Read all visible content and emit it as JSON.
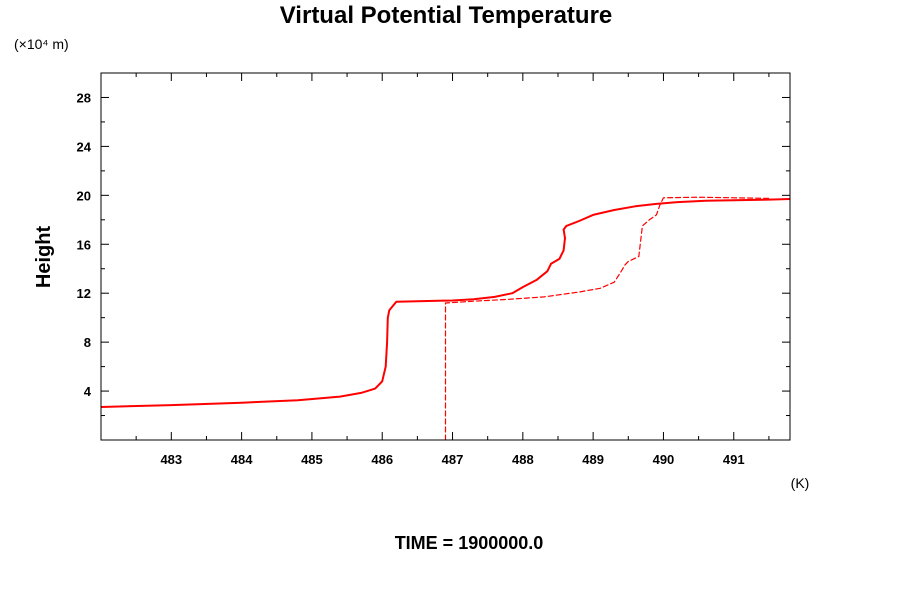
{
  "chart_data": {
    "type": "line",
    "title": "Virtual Potential Temperature",
    "ylabel": "Height",
    "yunit": "(×10⁴ m)",
    "xunit": "(K)",
    "footer": "TIME = 1900000.0",
    "xlim": [
      482.0,
      491.8
    ],
    "ylim": [
      0,
      30
    ],
    "xticks": [
      483,
      484,
      485,
      486,
      487,
      488,
      489,
      490,
      491
    ],
    "yticks": [
      4,
      8,
      12,
      16,
      20,
      24,
      28
    ],
    "xminor_step": 0.5,
    "yminor_step": 2,
    "grid": false,
    "color": "#ff0000",
    "series": [
      {
        "style": "solid",
        "x": [
          482.0,
          483.0,
          484.0,
          484.8,
          485.4,
          485.7,
          485.9,
          486.0,
          486.05,
          486.07,
          486.08,
          486.1,
          486.2,
          486.5,
          486.8,
          487.0,
          487.3,
          487.6,
          487.85,
          488.0,
          488.2,
          488.35,
          488.4,
          488.52,
          488.58,
          488.6,
          488.58,
          488.62,
          488.8,
          489.0,
          489.3,
          489.6,
          489.9,
          490.2,
          490.6,
          491.0,
          491.5,
          491.8
        ],
        "y": [
          2.7,
          2.85,
          3.05,
          3.25,
          3.55,
          3.85,
          4.2,
          4.8,
          6.0,
          8.0,
          10.0,
          10.6,
          11.3,
          11.35,
          11.38,
          11.4,
          11.5,
          11.7,
          12.0,
          12.5,
          13.1,
          13.8,
          14.4,
          14.8,
          15.5,
          16.5,
          17.2,
          17.5,
          17.9,
          18.4,
          18.8,
          19.1,
          19.3,
          19.45,
          19.55,
          19.6,
          19.65,
          19.7
        ]
      },
      {
        "style": "dashed",
        "x": [
          486.9,
          486.9,
          486.9,
          487.3,
          487.8,
          488.3,
          488.8,
          489.1,
          489.3,
          489.4,
          489.45,
          489.5,
          489.65,
          489.7,
          489.8,
          489.9,
          489.95,
          490.0,
          490.5,
          491.0,
          491.5
        ],
        "y": [
          0,
          6.0,
          11.2,
          11.35,
          11.5,
          11.7,
          12.1,
          12.4,
          12.9,
          13.8,
          14.3,
          14.6,
          15.0,
          17.5,
          18.0,
          18.4,
          19.2,
          19.8,
          19.85,
          19.8,
          19.75
        ]
      }
    ]
  }
}
